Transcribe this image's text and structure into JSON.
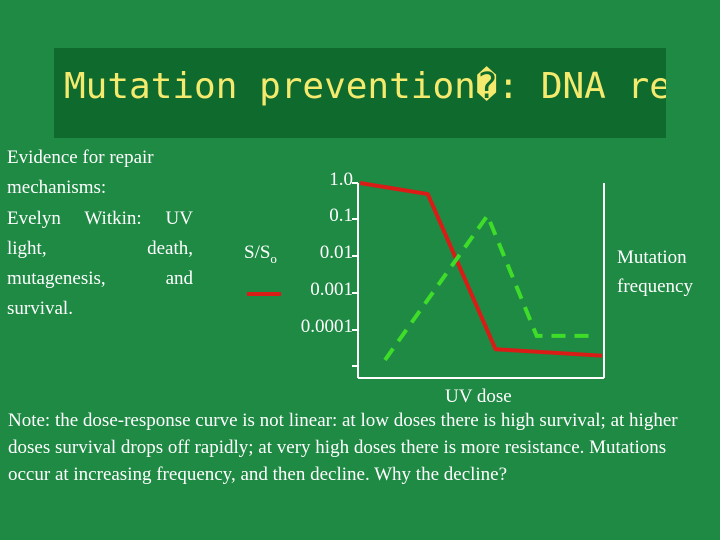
{
  "slide": {
    "title": "Mutation prevention�: DNA rep",
    "evidence_heading": "Evidence for repair mechanisms:",
    "witkin_text": "Evelyn Witkin: UV light, death, mutagenesis, and survival.",
    "note": "Note: the dose-response curve is not linear: at low doses there is high survival; at higher doses survival drops off rapidly; at very high doses there is more resistance. Mutations occur at increasing frequency, and then decline. Why the decline?"
  },
  "colors": {
    "background": "#1e8a44",
    "title_box": "#0f6a2e",
    "title_text": "#f3ea6e",
    "survival_line": "#d91c16",
    "mutation_line": "#3fdd2a",
    "axis": "#ffffff"
  },
  "chart_data": {
    "type": "line",
    "ylabel": "S/S",
    "ylabel_subscript": "o",
    "xlabel": "UV dose",
    "right_label": "Mutation frequency",
    "y_scale": "log",
    "y_ticks": [
      "1.0",
      "0.1",
      "0.01",
      "0.001",
      "0.0001"
    ],
    "series": [
      {
        "name": "survival",
        "color": "#d91c16",
        "style": "solid",
        "x": [
          0.0,
          0.28,
          0.56,
          1.0
        ],
        "y": [
          1.0,
          0.5,
          3e-05,
          2e-05
        ]
      },
      {
        "name": "mutation frequency",
        "color": "#3fdd2a",
        "style": "dashed",
        "x": [
          0.0,
          0.5,
          0.74,
          1.0
        ],
        "y": [
          0.0,
          0.84,
          0.14,
          0.14
        ]
      }
    ],
    "legend": [
      {
        "label": "",
        "color": "#d91c16",
        "style": "solid"
      }
    ]
  }
}
